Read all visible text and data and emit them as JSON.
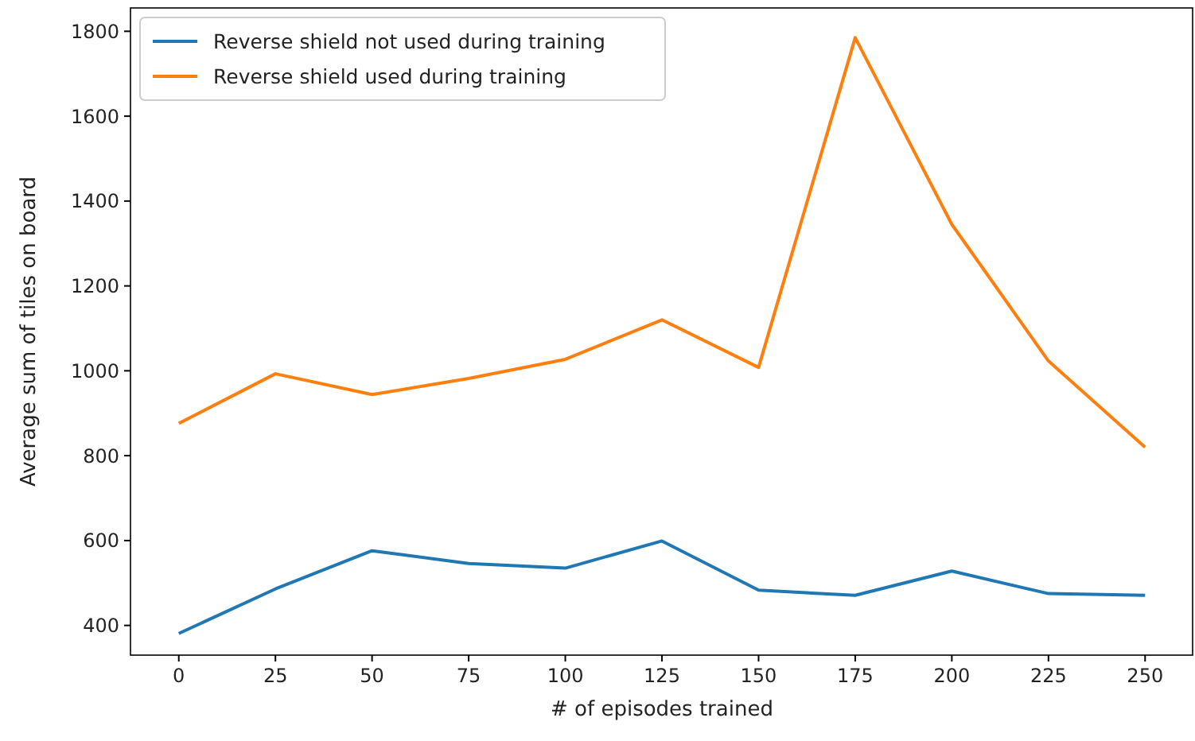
{
  "chart_data": {
    "type": "line",
    "xlabel": "# of episodes trained",
    "ylabel": "Average sum of tiles on board",
    "x": [
      0,
      25,
      50,
      75,
      100,
      125,
      150,
      175,
      200,
      225,
      250
    ],
    "series": [
      {
        "name": "Reverse shield not used during training",
        "color": "#1f77b4",
        "values": [
          381,
          486,
          576,
          546,
          535,
          599,
          483,
          471,
          528,
          475,
          471
        ]
      },
      {
        "name": "Reverse shield used during training",
        "color": "#ff7f0e",
        "values": [
          876,
          993,
          944,
          982,
          1027,
          1120,
          1008,
          1785,
          1345,
          1023,
          820
        ]
      }
    ],
    "xlim": [
      -12.5,
      262.5
    ],
    "xticks": [
      0,
      25,
      50,
      75,
      100,
      125,
      150,
      175,
      200,
      225,
      250
    ],
    "ylim": [
      330,
      1855
    ],
    "yticks": [
      400,
      600,
      800,
      1000,
      1200,
      1400,
      1600,
      1800
    ],
    "legend": "top left",
    "grid": false,
    "marker": "none",
    "line_style": "solid"
  }
}
